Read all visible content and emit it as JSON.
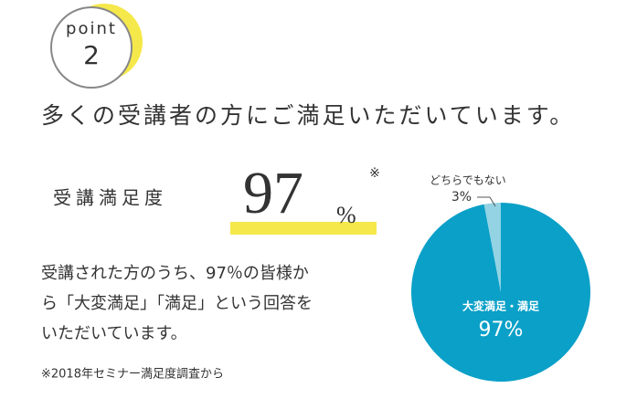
{
  "badge": {
    "label": "point",
    "number": "2"
  },
  "heading": "多くの受講者の方にご満足いただいています。",
  "stat": {
    "label": "受講満足度",
    "value": 97,
    "unit": "%",
    "note_mark": "※"
  },
  "body": [
    "受講された方のうち、97％の皆様か",
    "ら「大変満足」「満足」という回答を",
    "いただいています。"
  ],
  "footnote": "※2018年セミナー満足度調査から",
  "chart_data": {
    "type": "pie",
    "categories": [
      "大変満足・満足",
      "どちらでもない"
    ],
    "values": [
      97,
      3
    ],
    "value_labels": [
      "97%",
      "3%"
    ],
    "colors": [
      "#0aa0c8",
      "#93d3e3"
    ]
  }
}
